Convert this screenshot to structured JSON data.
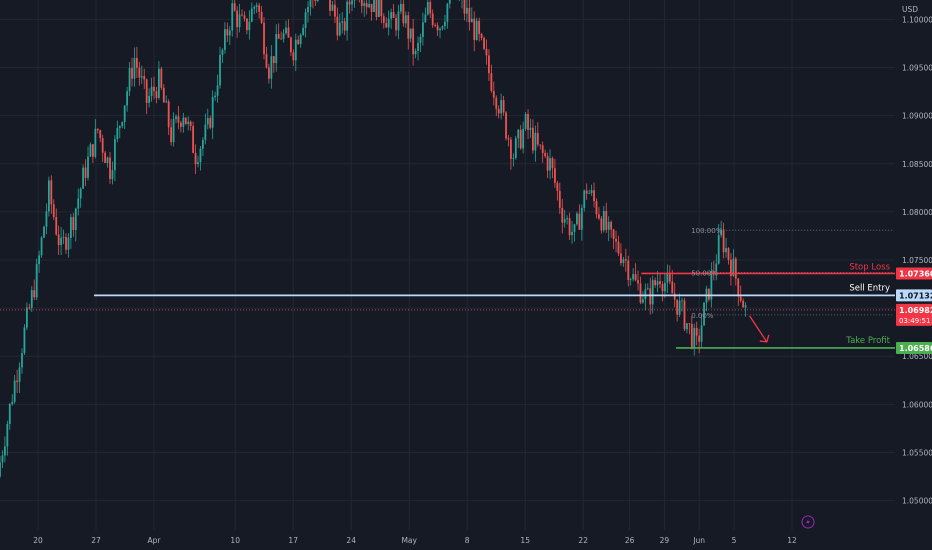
{
  "chart_data": {
    "type": "candlestick",
    "currency": "USD",
    "y_ticks": [
      "1.10000",
      "1.09500",
      "1.09000",
      "1.08500",
      "1.08000",
      "1.07500",
      "1.07000",
      "1.06500",
      "1.06000",
      "1.05500",
      "1.05000"
    ],
    "ylim": [
      1.0485,
      1.1015
    ],
    "x_ticks": [
      {
        "label": "20",
        "i": 0
      },
      {
        "label": "27",
        "i": 5
      },
      {
        "label": "Apr",
        "i": 10
      },
      {
        "label": "10",
        "i": 17
      },
      {
        "label": "17",
        "i": 22
      },
      {
        "label": "24",
        "i": 27
      },
      {
        "label": "May",
        "i": 32
      },
      {
        "label": "8",
        "i": 37
      },
      {
        "label": "15",
        "i": 42
      },
      {
        "label": "22",
        "i": 47
      },
      {
        "label": "26",
        "i": 51
      },
      {
        "label": "29",
        "i": 54
      },
      {
        "label": "Jun",
        "i": 57
      },
      {
        "label": "5",
        "i": 60
      },
      {
        "label": "12",
        "i": 65
      }
    ],
    "close": [
      1.054,
      1.061,
      1.0675,
      1.0735,
      1.082,
      1.076,
      1.0795,
      1.0845,
      1.0885,
      1.0845,
      1.0905,
      1.096,
      1.0915,
      1.0935,
      1.088,
      1.0905,
      1.086,
      1.0885,
      1.0955,
      1.101,
      1.099,
      1.102,
      1.095,
      1.0985,
      1.097,
      1.101,
      1.103,
      1.1015,
      1.0985,
      1.104,
      1.102,
      1.1015,
      1.0995,
      1.1005,
      1.096,
      1.101,
      1.0995,
      1.103,
      1.101,
      1.0985,
      1.0945,
      1.0905,
      1.086,
      1.089,
      1.0865,
      1.085,
      1.08,
      1.0775,
      1.0825,
      1.08,
      1.077,
      1.0755,
      1.0725,
      1.071,
      1.0735,
      1.0715,
      1.069,
      1.066,
      1.072,
      1.0775,
      1.074,
      1.0698
    ],
    "levels": {
      "stop_loss": {
        "label": "Stop Loss",
        "price_tag": "1.07360",
        "value": 1.0736
      },
      "sell_entry": {
        "label": "Sell Entry",
        "price_tag": "1.07132",
        "value": 1.07132
      },
      "take_profit": {
        "label": "Take Profit",
        "price_tag": "1.06586",
        "value": 1.06586
      },
      "current": {
        "price_tag": "1.06982",
        "countdown": "03:49:51",
        "value": 1.06982
      }
    },
    "fib": {
      "top_label": "100.00%",
      "bottom_label": "0.00%",
      "mid_label": "50.00%",
      "top": 1.0781,
      "bottom": 1.0693
    },
    "colors": {
      "up": "#26a69a",
      "down": "#ef5350",
      "stop": "#f23645",
      "entry": "#bbd9fb",
      "tp": "#4caf50",
      "bg": "#161a25"
    }
  }
}
